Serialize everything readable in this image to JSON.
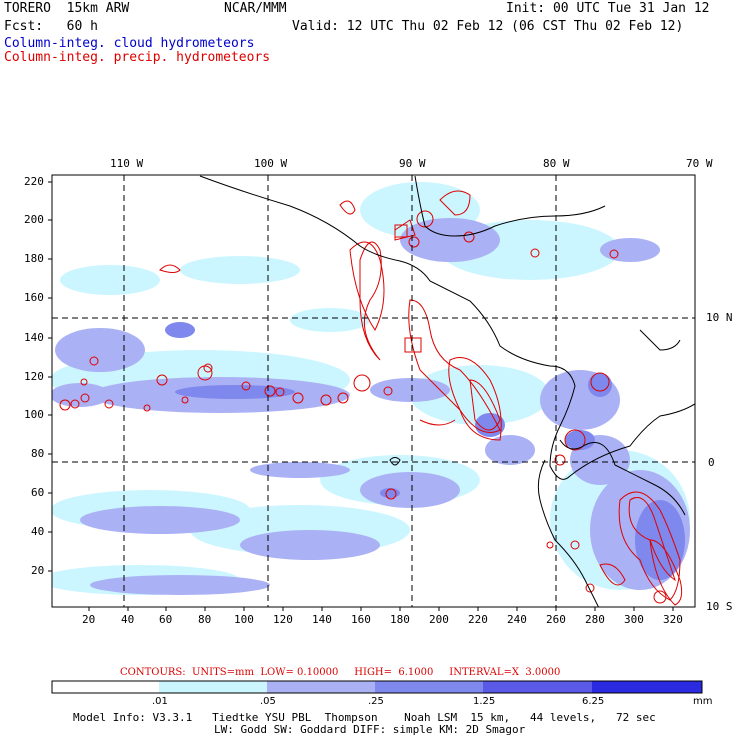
{
  "header": {
    "model": "TORERO  15km ARW",
    "center": "NCAR/MMM",
    "init": "Init: 00 UTC Tue 31 Jan 12",
    "fcst": "Fcst:   60 h",
    "valid": "Valid: 12 UTC Thu 02 Feb 12 (06 CST Thu 02 Feb 12)",
    "field1": "Column-integ. cloud hydrometeors",
    "field2": "Column-integ. precip. hydrometeors"
  },
  "map": {
    "lon_labels": [
      "110 W",
      "100 W",
      "90 W",
      "80 W",
      "70 W"
    ],
    "lat_labels": [
      "10 N",
      "0",
      "10 S"
    ],
    "y_ticks": [
      "220",
      "200",
      "180",
      "160",
      "140",
      "120",
      "100",
      "80",
      "60",
      "40",
      "20"
    ],
    "x_ticks": [
      "20",
      "40",
      "60",
      "80",
      "100",
      "120",
      "140",
      "160",
      "180",
      "200",
      "220",
      "240",
      "260",
      "280",
      "300",
      "320"
    ]
  },
  "contours": {
    "text": "CONTOURS:  UNITS=mm  LOW= 0.10000     HIGH=  6.1000     INTERVAL=X  3.0000"
  },
  "legend": {
    "labels": [
      ".01",
      ".05",
      ".25",
      "1.25",
      "6.25"
    ],
    "unit": "mm",
    "colors": [
      "#ffffff",
      "#ccf6ff",
      "#aab2f5",
      "#7f88ec",
      "#5a5ae6",
      "#2a2ae0"
    ]
  },
  "footer": {
    "line1": "Model Info: V3.3.1   Tiedtke YSU PBL  Thompson    Noah LSM  15 km,   44 levels,   72 sec",
    "line2": "LW: Godd SW: Goddard DIFF: simple KM: 2D Smagor"
  }
}
